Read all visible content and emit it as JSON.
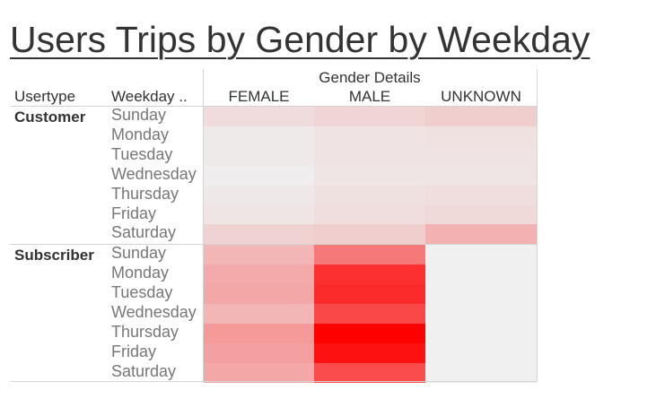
{
  "title": "Users Trips by Gender by Weekday",
  "colors": {
    "low": "#efefef",
    "high": "#ff0000",
    "null_cell": "#f0f0f0"
  },
  "chart_data": {
    "type": "heatmap",
    "column_group_label": "Gender Details",
    "row_headers": [
      "Usertype",
      "Weekday .."
    ],
    "columns": [
      "FEMALE",
      "MALE",
      "UNKNOWN"
    ],
    "groups": [
      {
        "name": "Customer",
        "rows": [
          {
            "day": "Sunday",
            "values": [
              0.08,
              0.11,
              0.14
            ]
          },
          {
            "day": "Monday",
            "values": [
              0.02,
              0.05,
              0.06
            ]
          },
          {
            "day": "Tuesday",
            "values": [
              0.02,
              0.05,
              0.05
            ]
          },
          {
            "day": "Wednesday",
            "values": [
              0.01,
              0.04,
              0.04
            ]
          },
          {
            "day": "Thursday",
            "values": [
              0.03,
              0.06,
              0.07
            ]
          },
          {
            "day": "Friday",
            "values": [
              0.04,
              0.07,
              0.09
            ]
          },
          {
            "day": "Saturday",
            "values": [
              0.12,
              0.14,
              0.26
            ]
          }
        ]
      },
      {
        "name": "Subscriber",
        "rows": [
          {
            "day": "Sunday",
            "values": [
              0.24,
              0.5,
              null
            ]
          },
          {
            "day": "Monday",
            "values": [
              0.29,
              0.8,
              null
            ]
          },
          {
            "day": "Tuesday",
            "values": [
              0.3,
              0.82,
              null
            ]
          },
          {
            "day": "Wednesday",
            "values": [
              0.24,
              0.7,
              null
            ]
          },
          {
            "day": "Thursday",
            "values": [
              0.36,
              1.0,
              null
            ]
          },
          {
            "day": "Friday",
            "values": [
              0.33,
              0.93,
              null
            ]
          },
          {
            "day": "Saturday",
            "values": [
              0.3,
              0.68,
              null
            ]
          }
        ]
      }
    ]
  }
}
